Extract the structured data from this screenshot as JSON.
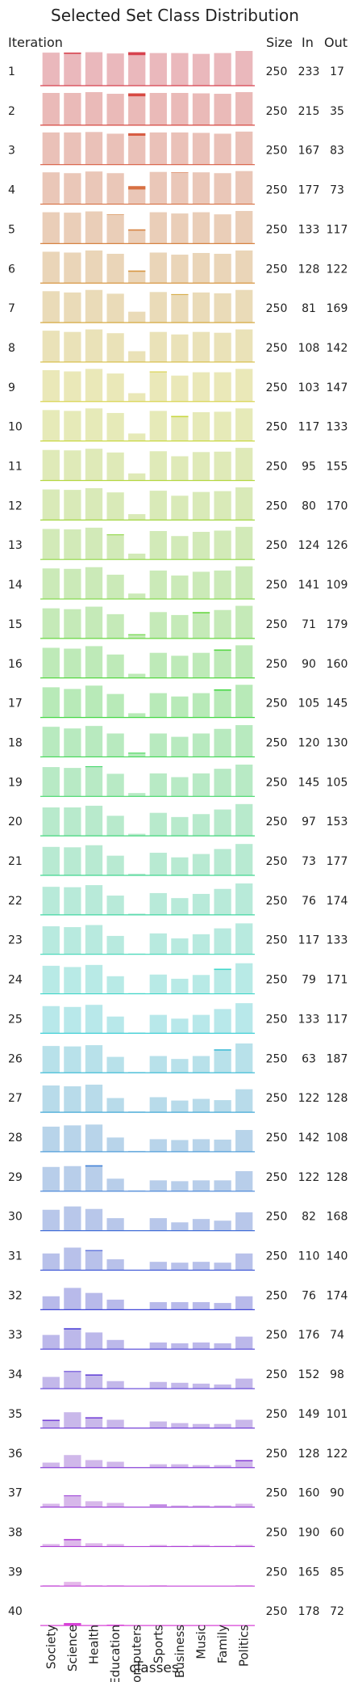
{
  "chart_data": {
    "type": "bar",
    "title": "Selected Set Class Distribution",
    "xlabel": "classes",
    "categories": [
      "Society",
      "Science",
      "Health",
      "Education",
      "Computers",
      "Sports",
      "Business",
      "Music",
      "Family",
      "Politics"
    ],
    "row_label_header": "Iteration",
    "column_headers": {
      "size": "Size",
      "in": "In",
      "out": "Out"
    },
    "color_scale": "hue gradient per iteration, light bars show remaining pool counts, dark overlay bars show selected counts",
    "iterations": [
      {
        "iteration": "1",
        "size": 250,
        "in": 233,
        "out": 17,
        "pool": [
          79,
          79,
          80,
          77,
          80,
          78,
          78,
          76,
          78,
          83
        ],
        "selected": [
          0,
          3,
          0,
          0,
          7,
          0,
          0,
          0,
          0,
          0
        ]
      },
      {
        "iteration": "2",
        "size": 250,
        "in": 215,
        "out": 35,
        "pool": [
          77,
          77,
          79,
          75,
          76,
          77,
          77,
          76,
          75,
          79
        ],
        "selected": [
          0,
          0,
          0,
          0,
          7,
          0,
          0,
          0,
          0,
          0
        ]
      },
      {
        "iteration": "3",
        "size": 250,
        "in": 167,
        "out": 83,
        "pool": [
          77,
          77,
          78,
          74,
          75,
          77,
          77,
          76,
          74,
          79
        ],
        "selected": [
          0,
          0,
          0,
          0,
          6,
          0,
          0,
          0,
          0,
          0
        ]
      },
      {
        "iteration": "4",
        "size": 250,
        "in": 177,
        "out": 73,
        "pool": [
          76,
          74,
          78,
          74,
          43,
          77,
          76,
          76,
          74,
          79
        ],
        "selected": [
          0,
          0,
          0,
          0,
          8,
          0,
          1,
          0,
          0,
          0
        ]
      },
      {
        "iteration": "5",
        "size": 250,
        "in": 133,
        "out": 117,
        "pool": [
          75,
          74,
          77,
          70,
          34,
          75,
          72,
          75,
          70,
          78
        ],
        "selected": [
          0,
          0,
          0,
          1,
          3,
          0,
          0,
          0,
          0,
          0
        ]
      },
      {
        "iteration": "6",
        "size": 250,
        "in": 128,
        "out": 122,
        "pool": [
          75,
          73,
          78,
          70,
          30,
          73,
          68,
          72,
          70,
          78
        ],
        "selected": [
          0,
          0,
          0,
          0,
          3,
          0,
          0,
          0,
          0,
          0
        ]
      },
      {
        "iteration": "7",
        "size": 250,
        "in": 81,
        "out": 169,
        "pool": [
          75,
          72,
          78,
          69,
          26,
          73,
          68,
          72,
          70,
          78
        ],
        "selected": [
          0,
          0,
          0,
          0,
          0,
          0,
          2,
          0,
          0,
          0
        ]
      },
      {
        "iteration": "8",
        "size": 250,
        "in": 108,
        "out": 142,
        "pool": [
          75,
          72,
          78,
          69,
          26,
          72,
          66,
          72,
          70,
          78
        ],
        "selected": [
          0,
          0,
          0,
          0,
          0,
          0,
          0,
          0,
          0,
          0
        ]
      },
      {
        "iteration": "9",
        "size": 250,
        "in": 103,
        "out": 147,
        "pool": [
          75,
          72,
          78,
          67,
          20,
          72,
          62,
          70,
          70,
          78
        ],
        "selected": [
          0,
          0,
          0,
          0,
          0,
          2,
          0,
          0,
          0,
          0
        ]
      },
      {
        "iteration": "10",
        "size": 250,
        "in": 117,
        "out": 133,
        "pool": [
          74,
          72,
          78,
          67,
          18,
          72,
          60,
          69,
          70,
          78
        ],
        "selected": [
          0,
          0,
          0,
          0,
          0,
          0,
          3,
          0,
          0,
          0
        ]
      },
      {
        "iteration": "11",
        "size": 250,
        "in": 95,
        "out": 155,
        "pool": [
          73,
          72,
          76,
          67,
          17,
          70,
          58,
          68,
          69,
          78
        ],
        "selected": [
          0,
          0,
          0,
          0,
          0,
          0,
          0,
          0,
          0,
          0
        ]
      },
      {
        "iteration": "12",
        "size": 250,
        "in": 80,
        "out": 170,
        "pool": [
          73,
          72,
          76,
          66,
          14,
          70,
          58,
          67,
          69,
          78
        ],
        "selected": [
          0,
          0,
          0,
          0,
          0,
          0,
          0,
          0,
          0,
          0
        ]
      },
      {
        "iteration": "13",
        "size": 250,
        "in": 124,
        "out": 126,
        "pool": [
          73,
          72,
          76,
          60,
          14,
          68,
          56,
          66,
          69,
          78
        ],
        "selected": [
          0,
          0,
          0,
          2,
          0,
          0,
          0,
          0,
          0,
          0
        ]
      },
      {
        "iteration": "14",
        "size": 250,
        "in": 141,
        "out": 109,
        "pool": [
          73,
          72,
          76,
          58,
          13,
          68,
          56,
          65,
          68,
          78
        ],
        "selected": [
          0,
          0,
          0,
          0,
          0,
          0,
          0,
          0,
          0,
          0
        ]
      },
      {
        "iteration": "15",
        "size": 250,
        "in": 71,
        "out": 179,
        "pool": [
          72,
          70,
          76,
          58,
          10,
          63,
          56,
          63,
          68,
          78
        ],
        "selected": [
          0,
          0,
          0,
          0,
          2,
          0,
          0,
          3,
          0,
          0
        ]
      },
      {
        "iteration": "16",
        "size": 250,
        "in": 90,
        "out": 160,
        "pool": [
          72,
          70,
          76,
          56,
          10,
          60,
          53,
          60,
          68,
          78
        ],
        "selected": [
          0,
          0,
          0,
          0,
          0,
          0,
          0,
          0,
          3,
          0
        ]
      },
      {
        "iteration": "17",
        "size": 250,
        "in": 105,
        "out": 145,
        "pool": [
          72,
          68,
          76,
          56,
          10,
          58,
          50,
          58,
          67,
          78
        ],
        "selected": [
          0,
          0,
          0,
          0,
          0,
          0,
          0,
          0,
          3,
          0
        ]
      },
      {
        "iteration": "18",
        "size": 250,
        "in": 120,
        "out": 130,
        "pool": [
          72,
          68,
          74,
          56,
          10,
          56,
          48,
          56,
          67,
          76
        ],
        "selected": [
          0,
          0,
          0,
          0,
          2,
          0,
          0,
          0,
          0,
          0
        ]
      },
      {
        "iteration": "19",
        "size": 250,
        "in": 145,
        "out": 105,
        "pool": [
          70,
          68,
          72,
          54,
          8,
          55,
          46,
          55,
          66,
          76
        ],
        "selected": [
          0,
          0,
          2,
          0,
          0,
          0,
          0,
          0,
          0,
          0
        ]
      },
      {
        "iteration": "20",
        "size": 250,
        "in": 97,
        "out": 153,
        "pool": [
          68,
          68,
          72,
          48,
          5,
          55,
          45,
          52,
          63,
          76
        ],
        "selected": [
          0,
          0,
          0,
          0,
          0,
          0,
          0,
          0,
          0,
          0
        ]
      },
      {
        "iteration": "21",
        "size": 250,
        "in": 73,
        "out": 177,
        "pool": [
          68,
          67,
          72,
          47,
          4,
          54,
          43,
          51,
          63,
          75
        ],
        "selected": [
          0,
          0,
          0,
          0,
          0,
          0,
          0,
          0,
          0,
          0
        ]
      },
      {
        "iteration": "22",
        "size": 250,
        "in": 76,
        "out": 174,
        "pool": [
          67,
          66,
          71,
          46,
          3,
          52,
          40,
          50,
          62,
          75
        ],
        "selected": [
          0,
          0,
          0,
          0,
          0,
          0,
          0,
          0,
          0,
          0
        ]
      },
      {
        "iteration": "23",
        "size": 250,
        "in": 117,
        "out": 133,
        "pool": [
          67,
          65,
          70,
          44,
          2,
          50,
          38,
          48,
          62,
          74
        ],
        "selected": [
          0,
          0,
          0,
          0,
          0,
          0,
          0,
          0,
          0,
          0
        ]
      },
      {
        "iteration": "24",
        "size": 250,
        "in": 79,
        "out": 171,
        "pool": [
          67,
          64,
          69,
          42,
          2,
          46,
          36,
          45,
          60,
          73
        ],
        "selected": [
          0,
          0,
          0,
          0,
          0,
          0,
          0,
          0,
          3,
          0
        ]
      },
      {
        "iteration": "25",
        "size": 250,
        "in": 133,
        "out": 117,
        "pool": [
          65,
          63,
          68,
          40,
          2,
          44,
          35,
          44,
          58,
          72
        ],
        "selected": [
          0,
          0,
          0,
          0,
          0,
          0,
          0,
          0,
          0,
          0
        ]
      },
      {
        "iteration": "26",
        "size": 250,
        "in": 63,
        "out": 187,
        "pool": [
          64,
          63,
          66,
          38,
          2,
          40,
          33,
          40,
          56,
          70
        ],
        "selected": [
          0,
          0,
          0,
          0,
          0,
          0,
          0,
          0,
          3,
          0
        ]
      },
      {
        "iteration": "27",
        "size": 250,
        "in": 122,
        "out": 128,
        "pool": [
          64,
          62,
          66,
          34,
          2,
          36,
          28,
          32,
          29,
          55
        ],
        "selected": [
          0,
          0,
          0,
          0,
          0,
          0,
          0,
          0,
          0,
          0
        ]
      },
      {
        "iteration": "28",
        "size": 250,
        "in": 142,
        "out": 108,
        "pool": [
          60,
          63,
          65,
          34,
          2,
          30,
          28,
          30,
          29,
          52
        ],
        "selected": [
          0,
          0,
          0,
          0,
          0,
          0,
          0,
          0,
          0,
          0
        ]
      },
      {
        "iteration": "29",
        "size": 250,
        "in": 122,
        "out": 128,
        "pool": [
          58,
          60,
          62,
          30,
          2,
          26,
          24,
          26,
          26,
          48
        ],
        "selected": [
          0,
          0,
          3,
          0,
          0,
          0,
          0,
          0,
          0,
          0
        ]
      },
      {
        "iteration": "30",
        "size": 250,
        "in": 82,
        "out": 168,
        "pool": [
          50,
          58,
          52,
          30,
          0,
          30,
          20,
          28,
          24,
          44
        ],
        "selected": [
          0,
          0,
          0,
          0,
          0,
          0,
          0,
          0,
          0,
          0
        ]
      },
      {
        "iteration": "31",
        "size": 250,
        "in": 110,
        "out": 140,
        "pool": [
          40,
          54,
          48,
          26,
          0,
          20,
          18,
          20,
          18,
          40
        ],
        "selected": [
          0,
          0,
          2,
          0,
          0,
          0,
          0,
          0,
          0,
          0
        ]
      },
      {
        "iteration": "32",
        "size": 250,
        "in": 76,
        "out": 174,
        "pool": [
          32,
          52,
          40,
          24,
          0,
          18,
          18,
          18,
          16,
          32
        ],
        "selected": [
          0,
          0,
          0,
          0,
          0,
          0,
          0,
          0,
          0,
          0
        ]
      },
      {
        "iteration": "33",
        "size": 250,
        "in": 176,
        "out": 74,
        "pool": [
          34,
          50,
          40,
          22,
          0,
          16,
          14,
          16,
          14,
          30
        ],
        "selected": [
          0,
          3,
          0,
          0,
          0,
          0,
          0,
          0,
          0,
          0
        ]
      },
      {
        "iteration": "34",
        "size": 250,
        "in": 152,
        "out": 98,
        "pool": [
          28,
          42,
          34,
          18,
          0,
          16,
          14,
          12,
          10,
          24
        ],
        "selected": [
          0,
          2,
          3,
          0,
          0,
          0,
          0,
          0,
          0,
          0
        ]
      },
      {
        "iteration": "35",
        "size": 250,
        "in": 149,
        "out": 101,
        "pool": [
          20,
          38,
          26,
          20,
          0,
          16,
          12,
          10,
          10,
          20
        ],
        "selected": [
          3,
          0,
          3,
          0,
          0,
          0,
          0,
          0,
          0,
          0
        ]
      },
      {
        "iteration": "36",
        "size": 250,
        "in": 128,
        "out": 122,
        "pool": [
          12,
          30,
          18,
          14,
          0,
          8,
          8,
          6,
          6,
          18
        ],
        "selected": [
          0,
          0,
          0,
          0,
          0,
          0,
          0,
          0,
          0,
          3
        ]
      },
      {
        "iteration": "37",
        "size": 250,
        "in": 160,
        "out": 90,
        "pool": [
          8,
          28,
          14,
          10,
          0,
          6,
          4,
          4,
          4,
          8
        ],
        "selected": [
          0,
          2,
          0,
          0,
          0,
          2,
          0,
          0,
          0,
          0
        ]
      },
      {
        "iteration": "38",
        "size": 250,
        "in": 190,
        "out": 60,
        "pool": [
          6,
          18,
          8,
          6,
          0,
          4,
          2,
          4,
          2,
          4
        ],
        "selected": [
          0,
          3,
          0,
          0,
          0,
          0,
          0,
          0,
          0,
          0
        ]
      },
      {
        "iteration": "39",
        "size": 250,
        "in": 165,
        "out": 85,
        "pool": [
          2,
          10,
          2,
          2,
          0,
          2,
          0,
          0,
          0,
          2
        ],
        "selected": [
          0,
          0,
          0,
          0,
          0,
          0,
          0,
          0,
          0,
          0
        ]
      },
      {
        "iteration": "40",
        "size": 250,
        "in": 178,
        "out": 72,
        "pool": [
          0,
          6,
          0,
          2,
          0,
          0,
          0,
          0,
          0,
          0
        ],
        "selected": [
          0,
          6,
          0,
          2,
          0,
          0,
          0,
          0,
          0,
          0
        ]
      }
    ],
    "ylim": [
      0,
      85
    ],
    "grid": false,
    "legend": "none"
  }
}
